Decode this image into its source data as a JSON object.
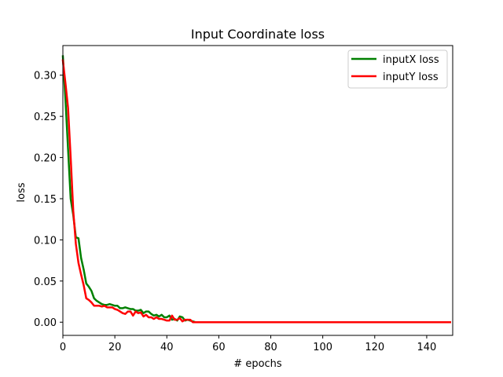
{
  "chart_data": {
    "type": "line",
    "title": "Input Coordinate loss",
    "xlabel": "# epochs",
    "ylabel": "loss",
    "xlim": [
      0,
      150
    ],
    "ylim": [
      -0.016,
      0.336
    ],
    "xticks": [
      0,
      20,
      40,
      60,
      80,
      100,
      120,
      140
    ],
    "yticks": [
      0.0,
      0.05,
      0.1,
      0.15,
      0.2,
      0.25,
      0.3
    ],
    "ytick_labels": [
      "0.00",
      "0.05",
      "0.10",
      "0.15",
      "0.20",
      "0.25",
      "0.30"
    ],
    "grid": false,
    "legend_position": "top-right",
    "series": [
      {
        "name": "inputX loss",
        "color": "#008000",
        "points": [
          [
            0,
            0.323
          ],
          [
            1,
            0.27
          ],
          [
            2,
            0.21
          ],
          [
            3,
            0.15
          ],
          [
            4,
            0.13
          ],
          [
            5,
            0.103
          ],
          [
            6,
            0.102
          ],
          [
            7,
            0.078
          ],
          [
            8,
            0.064
          ],
          [
            9,
            0.047
          ],
          [
            10,
            0.043
          ],
          [
            11,
            0.038
          ],
          [
            12,
            0.029
          ],
          [
            13,
            0.026
          ],
          [
            14,
            0.024
          ],
          [
            15,
            0.022
          ],
          [
            16,
            0.021
          ],
          [
            17,
            0.021
          ],
          [
            18,
            0.022
          ],
          [
            19,
            0.021
          ],
          [
            20,
            0.02
          ],
          [
            21,
            0.02
          ],
          [
            22,
            0.017
          ],
          [
            23,
            0.017
          ],
          [
            24,
            0.018
          ],
          [
            25,
            0.017
          ],
          [
            26,
            0.016
          ],
          [
            27,
            0.016
          ],
          [
            28,
            0.014
          ],
          [
            29,
            0.014
          ],
          [
            30,
            0.015
          ],
          [
            31,
            0.011
          ],
          [
            32,
            0.013
          ],
          [
            33,
            0.013
          ],
          [
            34,
            0.01
          ],
          [
            35,
            0.008
          ],
          [
            36,
            0.009
          ],
          [
            37,
            0.007
          ],
          [
            38,
            0.009
          ],
          [
            39,
            0.006
          ],
          [
            40,
            0.006
          ],
          [
            41,
            0.008
          ],
          [
            42,
            0.003
          ],
          [
            43,
            0.004
          ],
          [
            44,
            0.002
          ],
          [
            45,
            0.007
          ],
          [
            46,
            0.006
          ],
          [
            47,
            0.002
          ],
          [
            48,
            0.003
          ],
          [
            49,
            0.002
          ],
          [
            50,
            0.001
          ],
          [
            51,
            0.0
          ],
          [
            60,
            0.0
          ],
          [
            80,
            0.0
          ],
          [
            100,
            0.0
          ],
          [
            120,
            0.0
          ],
          [
            140,
            0.0
          ],
          [
            149,
            0.0
          ]
        ]
      },
      {
        "name": "inputY loss",
        "color": "#ff0000",
        "points": [
          [
            0,
            0.318
          ],
          [
            1,
            0.29
          ],
          [
            2,
            0.26
          ],
          [
            3,
            0.2
          ],
          [
            4,
            0.135
          ],
          [
            5,
            0.095
          ],
          [
            6,
            0.072
          ],
          [
            7,
            0.058
          ],
          [
            8,
            0.045
          ],
          [
            9,
            0.029
          ],
          [
            10,
            0.027
          ],
          [
            11,
            0.024
          ],
          [
            12,
            0.02
          ],
          [
            13,
            0.02
          ],
          [
            14,
            0.02
          ],
          [
            15,
            0.019
          ],
          [
            16,
            0.02
          ],
          [
            17,
            0.018
          ],
          [
            18,
            0.018
          ],
          [
            19,
            0.018
          ],
          [
            20,
            0.016
          ],
          [
            21,
            0.015
          ],
          [
            22,
            0.013
          ],
          [
            23,
            0.011
          ],
          [
            24,
            0.01
          ],
          [
            25,
            0.013
          ],
          [
            26,
            0.013
          ],
          [
            27,
            0.008
          ],
          [
            28,
            0.013
          ],
          [
            29,
            0.011
          ],
          [
            30,
            0.012
          ],
          [
            31,
            0.007
          ],
          [
            32,
            0.009
          ],
          [
            33,
            0.006
          ],
          [
            34,
            0.006
          ],
          [
            35,
            0.004
          ],
          [
            36,
            0.006
          ],
          [
            37,
            0.004
          ],
          [
            38,
            0.004
          ],
          [
            39,
            0.003
          ],
          [
            40,
            0.002
          ],
          [
            41,
            0.002
          ],
          [
            42,
            0.008
          ],
          [
            43,
            0.003
          ],
          [
            44,
            0.003
          ],
          [
            45,
            0.005
          ],
          [
            46,
            0.001
          ],
          [
            47,
            0.003
          ],
          [
            48,
            0.003
          ],
          [
            49,
            0.003
          ],
          [
            50,
            0.0
          ],
          [
            60,
            0.0
          ],
          [
            80,
            0.0
          ],
          [
            100,
            0.0
          ],
          [
            120,
            0.0
          ],
          [
            140,
            0.0
          ],
          [
            149,
            0.0
          ]
        ]
      }
    ]
  }
}
